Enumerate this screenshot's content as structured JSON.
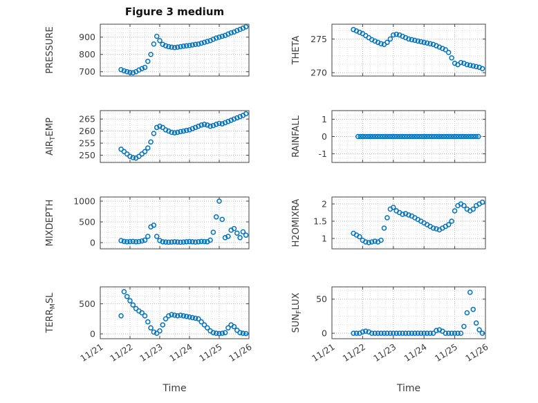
{
  "figure": {
    "title": "Figure 3 medium",
    "xlabel": "Time"
  },
  "style": {
    "marker_color": "#0072BD",
    "axis_color": "#404040",
    "grid_major": "#b3b3b3",
    "grid_minor": "#dcdcdc",
    "text_color": "#3b3b3b",
    "background": "#ffffff"
  },
  "x_axis": {
    "range": [
      21,
      26
    ],
    "ticks": [
      21,
      22,
      23,
      24,
      25,
      26
    ],
    "tick_labels": [
      "11/21",
      "11/22",
      "11/23",
      "11/24",
      "11/25",
      "11/26"
    ]
  },
  "chart_data": [
    {
      "type": "scatter",
      "name": "pressure",
      "label": "PRESSURE",
      "row": 0,
      "col": 0,
      "ylabel": {
        "pre": "PRESSURE",
        "sub": "",
        "post": ""
      },
      "ylim": [
        675,
        975
      ],
      "yticks": [
        700,
        800,
        900
      ],
      "x_start": 21.7,
      "x_step": 0.1,
      "values": [
        712,
        705,
        700,
        696,
        694,
        700,
        710,
        718,
        725,
        760,
        800,
        860,
        905,
        880,
        858,
        850,
        845,
        842,
        840,
        842,
        845,
        848,
        850,
        852,
        855,
        858,
        860,
        865,
        870,
        875,
        880,
        888,
        895,
        900,
        905,
        910,
        918,
        925,
        930,
        938,
        945,
        952,
        960
      ]
    },
    {
      "type": "scatter",
      "name": "theta",
      "label": "THETA",
      "row": 0,
      "col": 1,
      "ylabel": {
        "pre": "THETA",
        "sub": "",
        "post": ""
      },
      "ylim": [
        269.5,
        277.2
      ],
      "yticks": [
        270,
        275
      ],
      "x_start": 21.7,
      "x_step": 0.1,
      "values": [
        276.4,
        276.2,
        276.0,
        275.8,
        275.5,
        275.2,
        274.9,
        274.7,
        274.5,
        274.3,
        274.2,
        274.5,
        275.0,
        275.6,
        275.7,
        275.6,
        275.4,
        275.2,
        275.0,
        274.9,
        274.8,
        274.7,
        274.6,
        274.5,
        274.4,
        274.3,
        274.2,
        274.0,
        273.8,
        273.6,
        273.4,
        273.0,
        272.2,
        271.4,
        271.2,
        271.5,
        271.4,
        271.2,
        271.1,
        271.0,
        270.9,
        270.8,
        270.6
      ]
    },
    {
      "type": "scatter",
      "name": "air-temp",
      "label": "AIR_TEMP",
      "row": 1,
      "col": 0,
      "ylabel": {
        "pre": "AIR",
        "sub": "T",
        "post": "EMP"
      },
      "ylim": [
        247,
        268.5
      ],
      "yticks": [
        250,
        255,
        260,
        265
      ],
      "x_start": 21.7,
      "x_step": 0.1,
      "values": [
        252.5,
        251.5,
        250.5,
        249.5,
        249.0,
        248.8,
        249.5,
        250.5,
        251.5,
        253.0,
        255.5,
        259.0,
        261.5,
        262.0,
        261.5,
        260.5,
        260.0,
        259.5,
        259.3,
        259.5,
        259.8,
        260.0,
        260.3,
        260.5,
        261.0,
        261.5,
        262.0,
        262.5,
        262.8,
        262.5,
        262.0,
        262.3,
        262.8,
        263.2,
        263.0,
        263.5,
        264.0,
        264.5,
        265.0,
        265.5,
        266.0,
        266.5,
        267.2
      ]
    },
    {
      "type": "scatter",
      "name": "rainfall",
      "label": "RAINFALL",
      "row": 1,
      "col": 1,
      "ylabel": {
        "pre": "RAINFALL",
        "sub": "",
        "post": ""
      },
      "ylim": [
        -1.5,
        1.5
      ],
      "yticks": [
        -1,
        0,
        1
      ],
      "x_start": 21.85,
      "x_step": 0.08,
      "values": [
        0,
        0,
        0,
        0,
        0,
        0,
        0,
        0,
        0,
        0,
        0,
        0,
        0,
        0,
        0,
        0,
        0,
        0,
        0,
        0,
        0,
        0,
        0,
        0,
        0,
        0,
        0,
        0,
        0,
        0,
        0,
        0,
        0,
        0,
        0,
        0,
        0,
        0,
        0,
        0,
        0,
        0,
        0,
        0,
        0,
        0,
        0,
        0,
        0,
        0
      ]
    },
    {
      "type": "scatter",
      "name": "mixdepth",
      "label": "MIXDEPTH",
      "row": 2,
      "col": 0,
      "ylabel": {
        "pre": "MIXDEPTH",
        "sub": "",
        "post": ""
      },
      "ylim": [
        -150,
        1100
      ],
      "yticks": [
        0,
        500,
        1000
      ],
      "x_start": 21.7,
      "x_step": 0.1,
      "values": [
        50,
        30,
        20,
        25,
        30,
        20,
        25,
        40,
        60,
        150,
        380,
        420,
        150,
        50,
        20,
        15,
        10,
        15,
        20,
        15,
        10,
        15,
        20,
        25,
        20,
        15,
        20,
        30,
        25,
        20,
        60,
        250,
        620,
        1000,
        560,
        120,
        150,
        300,
        340,
        230,
        120,
        260,
        180
      ]
    },
    {
      "type": "scatter",
      "name": "h2omixra",
      "label": "H2OMIXRA",
      "row": 2,
      "col": 1,
      "ylabel": {
        "pre": "H2OMIXRA",
        "sub": "",
        "post": ""
      },
      "ylim": [
        0.7,
        2.2
      ],
      "yticks": [
        1,
        1.5,
        2
      ],
      "x_start": 21.7,
      "x_step": 0.1,
      "values": [
        1.15,
        1.1,
        1.05,
        0.95,
        0.9,
        0.88,
        0.9,
        0.92,
        0.9,
        0.95,
        1.3,
        1.6,
        1.85,
        1.9,
        1.8,
        1.75,
        1.7,
        1.72,
        1.68,
        1.65,
        1.6,
        1.55,
        1.5,
        1.45,
        1.4,
        1.35,
        1.3,
        1.28,
        1.25,
        1.3,
        1.35,
        1.4,
        1.5,
        1.8,
        1.95,
        2.0,
        1.95,
        1.85,
        1.8,
        1.85,
        1.95,
        2.0,
        2.05
      ]
    },
    {
      "type": "scatter",
      "name": "terr-msl",
      "label": "TERR_MSL",
      "row": 3,
      "col": 0,
      "ylabel": {
        "pre": "TERR",
        "sub": "M",
        "post": "SL"
      },
      "ylim": [
        -80,
        780
      ],
      "yticks": [
        0,
        500
      ],
      "x_start": 21.7,
      "x_step": 0.1,
      "values": [
        300,
        700,
        620,
        550,
        480,
        420,
        380,
        350,
        300,
        200,
        100,
        30,
        10,
        50,
        150,
        250,
        300,
        320,
        310,
        300,
        310,
        300,
        290,
        280,
        270,
        260,
        250,
        200,
        150,
        100,
        50,
        20,
        10,
        5,
        10,
        20,
        100,
        150,
        120,
        60,
        20,
        10,
        5
      ]
    },
    {
      "type": "scatter",
      "name": "sun-flux",
      "label": "SUN_FLUX",
      "row": 3,
      "col": 1,
      "ylabel": {
        "pre": "SUN",
        "sub": "F",
        "post": "LUX"
      },
      "ylim": [
        -8,
        68
      ],
      "yticks": [
        0,
        50
      ],
      "x_start": 21.7,
      "x_step": 0.1,
      "values": [
        0,
        0,
        0,
        2,
        3,
        2,
        0,
        0,
        0,
        0,
        0,
        0,
        0,
        0,
        0,
        0,
        0,
        0,
        0,
        0,
        0,
        0,
        0,
        0,
        0,
        0,
        0,
        4,
        5,
        3,
        0,
        0,
        0,
        0,
        0,
        0,
        10,
        30,
        60,
        35,
        15,
        5,
        0
      ]
    }
  ]
}
